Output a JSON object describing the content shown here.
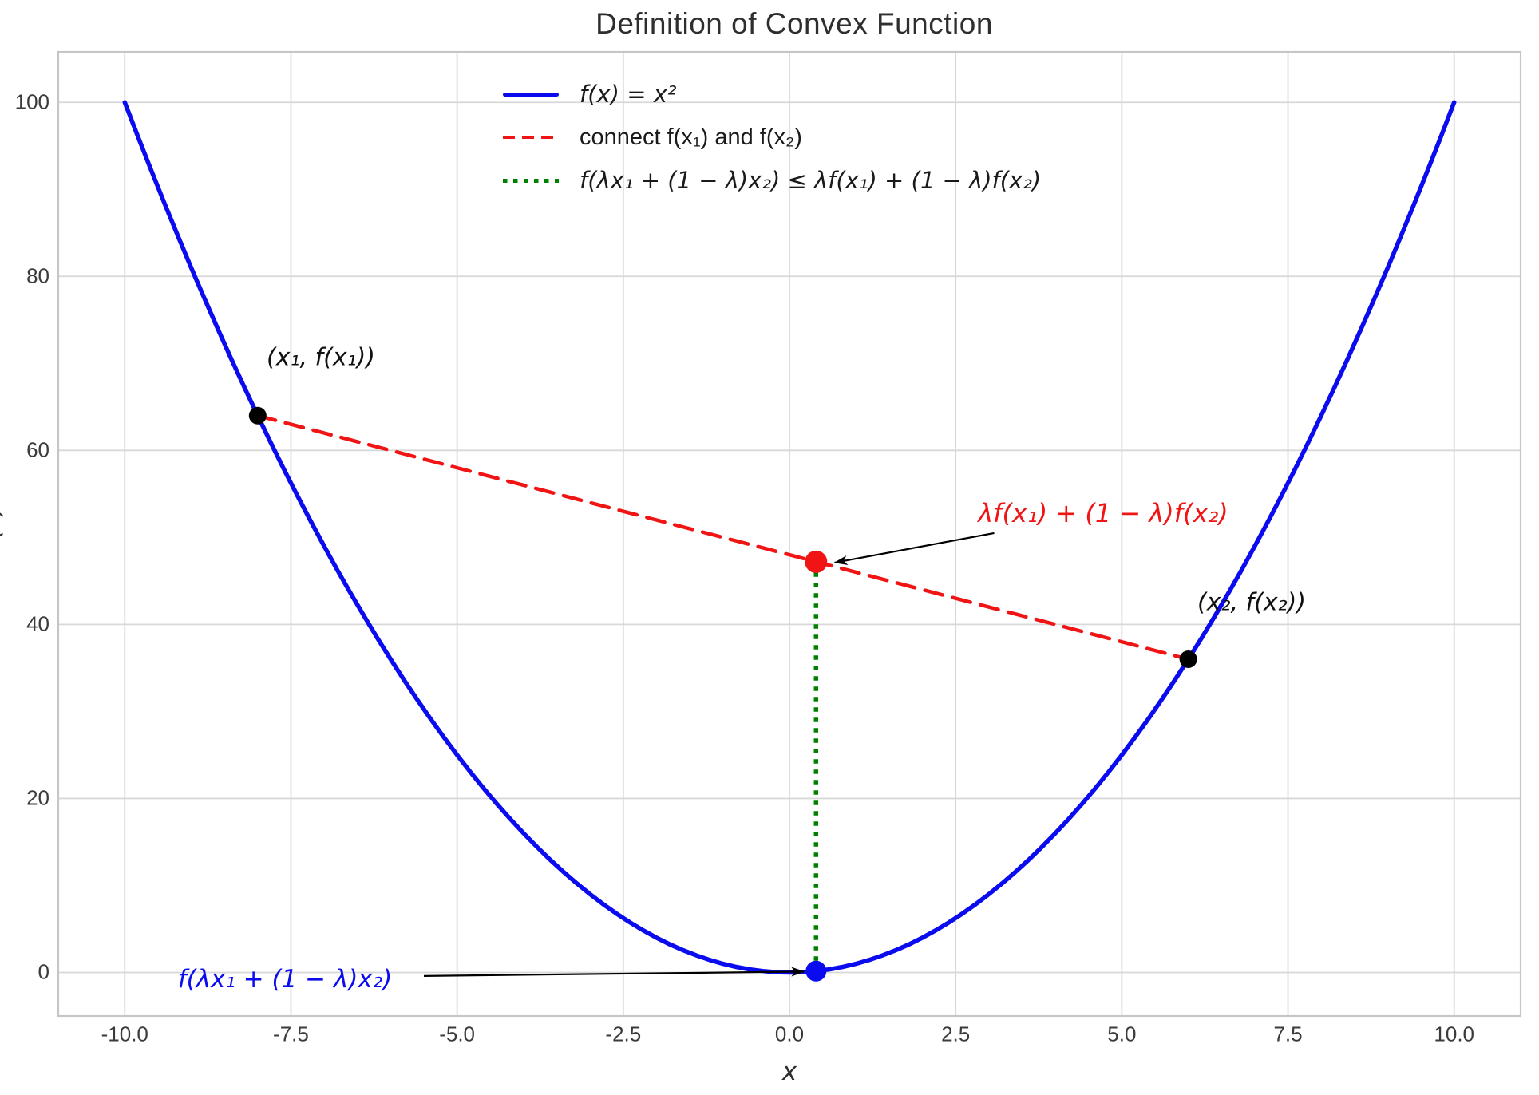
{
  "title": "Definition of Convex Function",
  "axes": {
    "xlabel": "x",
    "ylabel": "f(x)",
    "x_tick_labels": [
      "-10.0",
      "-7.5",
      "-5.0",
      "-2.5",
      "0.0",
      "2.5",
      "5.0",
      "7.5",
      "10.0"
    ],
    "y_tick_labels": [
      "0",
      "20",
      "40",
      "60",
      "80",
      "100"
    ]
  },
  "legend": {
    "items": [
      {
        "swatch": "blue-solid-line",
        "label": "f(x) = x²"
      },
      {
        "swatch": "red-dashed-line",
        "label": "connect f(x₁) and f(x₂)"
      },
      {
        "swatch": "green-dotted-line",
        "label": "f(λx₁ + (1 − λ)x₂) ≤ λf(x₁) + (1 − λ)f(x₂)"
      }
    ]
  },
  "annotations": {
    "point1_label": "(x₁, f(x₁))",
    "point2_label": "(x₂, f(x₂))",
    "chord_value_label": "λf(x₁) + (1 − λ)f(x₂)",
    "function_value_label": "f(λx₁ + (1 − λ)x₂)"
  },
  "colors": {
    "curve_blue": "#0b0bf0",
    "chord_red": "#f01414",
    "inequality_green": "#008000",
    "point_black": "#000000",
    "grid": "#d8d8d8",
    "spine": "#c6c6c6",
    "text_dark": "#2e2e2e",
    "tick_text": "#3b3b3b"
  },
  "chart_data": {
    "type": "line",
    "title": "Definition of Convex Function",
    "xlabel": "x",
    "ylabel": "f(x)",
    "xlim": [
      -11,
      11
    ],
    "ylim": [
      -5,
      105.8
    ],
    "x_ticks": [
      -10,
      -7.5,
      -5,
      -2.5,
      0,
      2.5,
      5,
      7.5,
      10
    ],
    "y_ticks": [
      0,
      20,
      40,
      60,
      80,
      100
    ],
    "grid": true,
    "legend_position": "upper center",
    "series": [
      {
        "name": "f(x) = x²",
        "fn": "x^2",
        "x_min": -10,
        "x_max": 10,
        "style": "solid",
        "color": "#0b0bf0",
        "width": 5.5
      },
      {
        "name": "connect f(x₁) and f(x₂)",
        "points": [
          [
            -8,
            64
          ],
          [
            6,
            36
          ]
        ],
        "style": "dashed",
        "color": "#f01414",
        "width": 4.5
      },
      {
        "name": "f(λx₁ + (1 − λ)x₂) ≤ λf(x₁) + (1 − λ)f(x₂)",
        "points": [
          [
            0.4,
            0.16
          ],
          [
            0.4,
            47.2
          ]
        ],
        "style": "dotted",
        "color": "#008000",
        "width": 5.5
      }
    ],
    "scatter": [
      {
        "x": -8,
        "y": 64,
        "color": "#000000",
        "size": 11,
        "label": "(x₁, f(x₁))"
      },
      {
        "x": 6,
        "y": 36,
        "color": "#000000",
        "size": 11,
        "label": "(x₂, f(x₂))"
      },
      {
        "x": 0.4,
        "y": 47.2,
        "color": "#f01414",
        "size": 14,
        "label": "λf(x₁) + (1 − λ)f(x₂)"
      },
      {
        "x": 0.4,
        "y": 0.16,
        "color": "#0b0bf0",
        "size": 13,
        "label": "f(λx₁ + (1 − λ)x₂)"
      }
    ],
    "arrows": [
      {
        "from": [
          3.08,
          50.5
        ],
        "to": [
          0.68,
          47.1
        ]
      },
      {
        "from": [
          -5.5,
          -0.4
        ],
        "to": [
          0.22,
          0.1
        ]
      }
    ]
  }
}
